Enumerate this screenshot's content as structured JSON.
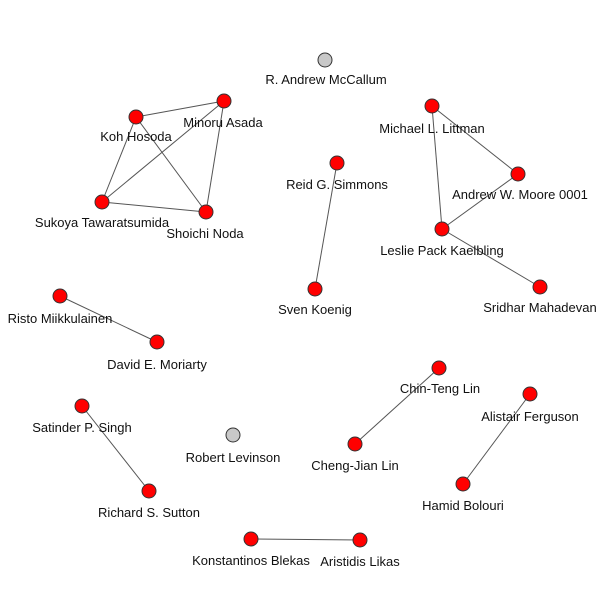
{
  "graph": {
    "colors": {
      "connected": "#ff0000",
      "isolated": "#c8c8c8"
    },
    "nodes": [
      {
        "id": "mccallum",
        "label": "R. Andrew McCallum",
        "isolated": true
      },
      {
        "id": "hosoda",
        "label": "Koh Hosoda",
        "isolated": false
      },
      {
        "id": "asada",
        "label": "Minoru Asada",
        "isolated": false
      },
      {
        "id": "tawara",
        "label": "Sukoya Tawaratsumida",
        "isolated": false
      },
      {
        "id": "noda",
        "label": "Shoichi Noda",
        "isolated": false
      },
      {
        "id": "simmons",
        "label": "Reid G. Simmons",
        "isolated": false
      },
      {
        "id": "koenig",
        "label": "Sven Koenig",
        "isolated": false
      },
      {
        "id": "littman",
        "label": "Michael L. Littman",
        "isolated": false
      },
      {
        "id": "moore",
        "label": "Andrew W. Moore 0001",
        "isolated": false
      },
      {
        "id": "kaelbling",
        "label": "Leslie Pack Kaelbling",
        "isolated": false
      },
      {
        "id": "mahadevan",
        "label": "Sridhar Mahadevan",
        "isolated": false
      },
      {
        "id": "miikkulainen",
        "label": "Risto Miikkulainen",
        "isolated": false
      },
      {
        "id": "moriarty",
        "label": "David E. Moriarty",
        "isolated": false
      },
      {
        "id": "ctlin",
        "label": "Chin-Teng Lin",
        "isolated": false
      },
      {
        "id": "cjlin",
        "label": "Cheng-Jian Lin",
        "isolated": false
      },
      {
        "id": "ferguson",
        "label": "Alistair Ferguson",
        "isolated": false
      },
      {
        "id": "bolouri",
        "label": "Hamid Bolouri",
        "isolated": false
      },
      {
        "id": "singh",
        "label": "Satinder P. Singh",
        "isolated": false
      },
      {
        "id": "sutton",
        "label": "Richard S. Sutton",
        "isolated": false
      },
      {
        "id": "levinson",
        "label": "Robert Levinson",
        "isolated": true
      },
      {
        "id": "blekas",
        "label": "Konstantinos Blekas",
        "isolated": false
      },
      {
        "id": "likas",
        "label": "Aristidis Likas",
        "isolated": false
      }
    ],
    "edges": [
      [
        "hosoda",
        "asada"
      ],
      [
        "hosoda",
        "tawara"
      ],
      [
        "hosoda",
        "noda"
      ],
      [
        "asada",
        "tawara"
      ],
      [
        "asada",
        "noda"
      ],
      [
        "tawara",
        "noda"
      ],
      [
        "simmons",
        "koenig"
      ],
      [
        "littman",
        "moore"
      ],
      [
        "littman",
        "kaelbling"
      ],
      [
        "moore",
        "kaelbling"
      ],
      [
        "kaelbling",
        "mahadevan"
      ],
      [
        "miikkulainen",
        "moriarty"
      ],
      [
        "ctlin",
        "cjlin"
      ],
      [
        "ferguson",
        "bolouri"
      ],
      [
        "singh",
        "sutton"
      ],
      [
        "blekas",
        "likas"
      ]
    ]
  }
}
